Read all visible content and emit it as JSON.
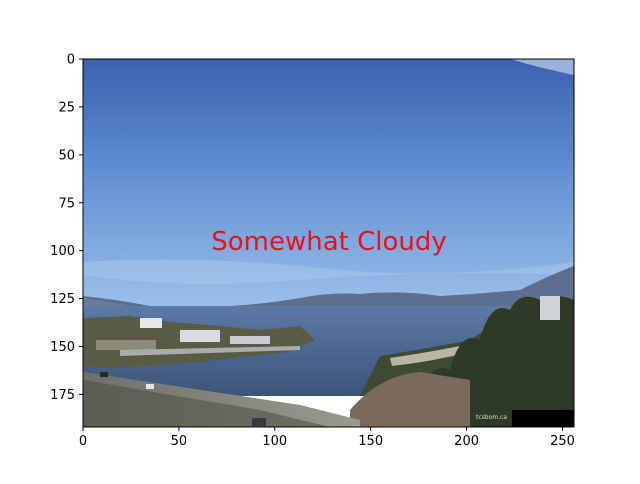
{
  "image": {
    "annotation": "Somewhat Cloudy",
    "annotation_color": "#e8121b",
    "watermark": "tcsbom.ca",
    "x_ticks": [
      0,
      50,
      100,
      150,
      200,
      250
    ],
    "y_ticks": [
      0,
      25,
      50,
      75,
      100,
      125,
      150,
      175
    ],
    "x_range": [
      0,
      256
    ],
    "y_range": [
      0,
      192
    ],
    "sky_top_color": "#3a66b0",
    "sky_bottom_color": "#8fb6e6",
    "water_color": "#3d5a82",
    "land_color": "#4b4f3a"
  }
}
